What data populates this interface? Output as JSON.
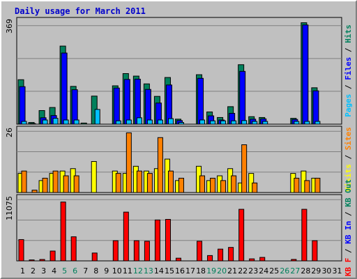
{
  "title": "Daily usage for March 2011",
  "colors": {
    "background": "#c0c0c0",
    "panel": "#c0c0c0",
    "grid": "#808080",
    "hits": "#00805c",
    "files": "#0000ff",
    "pages": "#00c0ff",
    "visits": "#ffff00",
    "sites": "#ff8000",
    "kb_in": "#0000ff",
    "kb_out": "#00805c",
    "kb_f": "#ff0000",
    "title": "#0000cc",
    "weekend_tick": "#00805c",
    "weekday_tick": "#000000"
  },
  "chart_data": [
    {
      "type": "bar",
      "panel": "top",
      "y_max_label": "369",
      "ylim": [
        0,
        369
      ],
      "right_label": [
        {
          "text": "Pages",
          "color": "#00c0ff"
        },
        {
          "text": " / ",
          "color": "#000000"
        },
        {
          "text": "Files",
          "color": "#0000ff"
        },
        {
          "text": " / ",
          "color": "#000000"
        },
        {
          "text": "Hits",
          "color": "#00805c"
        }
      ],
      "series": [
        {
          "name": "Hits",
          "values": [
            160,
            6,
            49,
            60,
            281,
            136,
            4,
            101,
            0,
            138,
            182,
            173,
            145,
            100,
            168,
            18,
            0,
            178,
            44,
            24,
            63,
            214,
            27,
            24,
            0,
            0,
            21,
            365,
            131,
            0,
            0
          ]
        },
        {
          "name": "Files",
          "values": [
            135,
            2,
            23,
            31,
            256,
            124,
            0,
            0,
            0,
            130,
            161,
            162,
            125,
            76,
            141,
            13,
            0,
            165,
            30,
            15,
            39,
            190,
            18,
            19,
            0,
            0,
            17,
            357,
            120,
            0,
            0
          ]
        },
        {
          "name": "Pages",
          "values": [
            10,
            0,
            15,
            21,
            15,
            15,
            0,
            53,
            0,
            12,
            15,
            23,
            15,
            15,
            20,
            6,
            0,
            15,
            12,
            12,
            12,
            13,
            10,
            10,
            0,
            0,
            10,
            10,
            10,
            0,
            0
          ]
        }
      ]
    },
    {
      "type": "bar",
      "panel": "middle",
      "y_max_label": "26",
      "ylim": [
        0,
        26
      ],
      "right_label": [
        {
          "text": "Visits",
          "color": "#ffff00"
        },
        {
          "text": " / ",
          "color": "#000000"
        },
        {
          "text": "Sites",
          "color": "#ff8000"
        }
      ],
      "series": [
        {
          "name": "Visits",
          "values": [
            8,
            0,
            5,
            8,
            9,
            10,
            0,
            13,
            0,
            9,
            8,
            11,
            9,
            10,
            14,
            5,
            0,
            11,
            5,
            7,
            10,
            4,
            8,
            0,
            0,
            0,
            8,
            9,
            6,
            0,
            0
          ]
        },
        {
          "name": "Sites",
          "values": [
            9,
            1,
            6,
            9,
            7,
            7,
            0,
            0,
            0,
            8,
            25,
            9,
            8,
            23,
            9,
            6,
            0,
            7,
            6,
            5,
            7,
            20,
            4,
            0,
            0,
            0,
            6,
            5,
            6,
            0,
            0
          ]
        }
      ]
    },
    {
      "type": "bar",
      "panel": "bottom",
      "y_max_label": "11075",
      "ylim": [
        0,
        11075
      ],
      "right_label": [
        {
          "text": "KB F",
          "color": "#ff0000"
        },
        {
          "text": " / ",
          "color": "#000000"
        },
        {
          "text": "KB In",
          "color": "#0000ff"
        },
        {
          "text": " / ",
          "color": "#000000"
        },
        {
          "text": "KB Out",
          "color": "#00805c"
        }
      ],
      "series": [
        {
          "name": "KB F",
          "values": [
            3800,
            170,
            250,
            1750,
            10500,
            4300,
            0,
            1400,
            0,
            3600,
            8700,
            3600,
            3500,
            7300,
            7400,
            480,
            0,
            3500,
            950,
            2100,
            2400,
            9200,
            360,
            620,
            0,
            0,
            260,
            9200,
            3600,
            0,
            0
          ]
        }
      ]
    }
  ],
  "x_axis": {
    "categories": [
      "1",
      "2",
      "3",
      "4",
      "5",
      "6",
      "7",
      "8",
      "9",
      "10",
      "11",
      "12",
      "13",
      "14",
      "15",
      "16",
      "17",
      "18",
      "19",
      "20",
      "21",
      "22",
      "23",
      "24",
      "25",
      "26",
      "27",
      "28",
      "29",
      "30",
      "31"
    ],
    "weekend_days": [
      "5",
      "6",
      "12",
      "13",
      "19",
      "20",
      "26",
      "27"
    ]
  }
}
